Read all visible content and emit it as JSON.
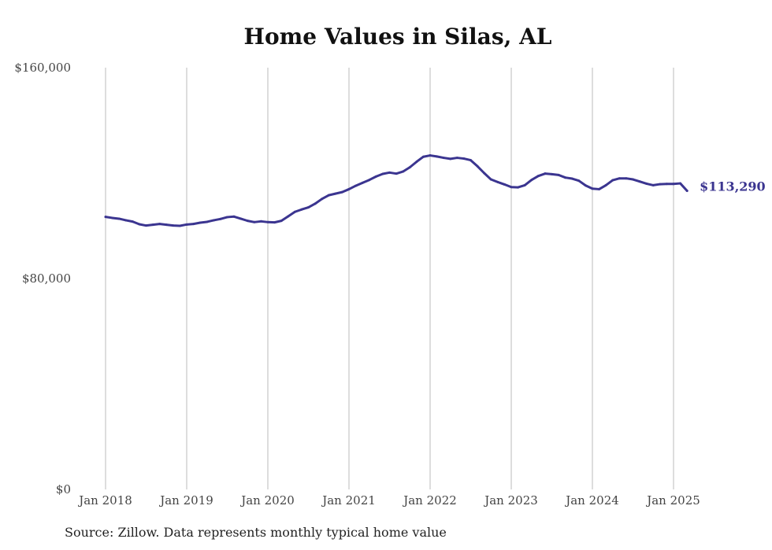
{
  "title": "Home Values in Silas, AL",
  "source": "Source: Zillow. Data represents monthly typical home value",
  "colors": {
    "line": "#3b3590",
    "grid": "#bbbbbb",
    "text": "#444444"
  },
  "chart_data": {
    "type": "line",
    "title": "Home Values in Silas, AL",
    "xlabel": "",
    "ylabel": "",
    "ylim": [
      0,
      160000
    ],
    "y_ticks": [
      0,
      80000,
      160000
    ],
    "y_tick_labels": [
      "$0",
      "$80,000",
      "$160,000"
    ],
    "x_ticks": [
      "2018-01",
      "2019-01",
      "2020-01",
      "2021-01",
      "2022-01",
      "2023-01",
      "2024-01",
      "2025-01"
    ],
    "x_tick_labels": [
      "Jan 2018",
      "Jan 2019",
      "Jan 2020",
      "Jan 2021",
      "Jan 2022",
      "Jan 2023",
      "Jan 2024",
      "Jan 2025"
    ],
    "grid": "vertical",
    "end_label": "$113,290",
    "series": [
      {
        "x": [
          "2018-01",
          "2018-02",
          "2018-03",
          "2018-04",
          "2018-05",
          "2018-06",
          "2018-07",
          "2018-08",
          "2018-09",
          "2018-10",
          "2018-11",
          "2018-12",
          "2019-01",
          "2019-02",
          "2019-03",
          "2019-04",
          "2019-05",
          "2019-06",
          "2019-07",
          "2019-08",
          "2019-09",
          "2019-10",
          "2019-11",
          "2019-12",
          "2020-01",
          "2020-02",
          "2020-03",
          "2020-04",
          "2020-05",
          "2020-06",
          "2020-07",
          "2020-08",
          "2020-09",
          "2020-10",
          "2020-11",
          "2020-12",
          "2021-01",
          "2021-02",
          "2021-03",
          "2021-04",
          "2021-05",
          "2021-06",
          "2021-07",
          "2021-08",
          "2021-09",
          "2021-10",
          "2021-11",
          "2021-12",
          "2022-01",
          "2022-02",
          "2022-03",
          "2022-04",
          "2022-05",
          "2022-06",
          "2022-07",
          "2022-08",
          "2022-09",
          "2022-10",
          "2022-11",
          "2022-12",
          "2023-01",
          "2023-02",
          "2023-03",
          "2023-04",
          "2023-05",
          "2023-06",
          "2023-07",
          "2023-08",
          "2023-09",
          "2023-10",
          "2023-11",
          "2023-12",
          "2024-01",
          "2024-02",
          "2024-03",
          "2024-04",
          "2024-05",
          "2024-06",
          "2024-07",
          "2024-08",
          "2024-09",
          "2024-10",
          "2024-11",
          "2024-12",
          "2025-01",
          "2025-02",
          "2025-03"
        ],
        "values": [
          103400,
          103000,
          102700,
          102100,
          101600,
          100600,
          100100,
          100400,
          100700,
          100400,
          100100,
          100000,
          100500,
          100700,
          101200,
          101500,
          102100,
          102600,
          103300,
          103500,
          102700,
          101900,
          101400,
          101700,
          101400,
          101300,
          101900,
          103600,
          105300,
          106200,
          107000,
          108400,
          110200,
          111600,
          112200,
          112800,
          113900,
          115200,
          116300,
          117400,
          118700,
          119700,
          120200,
          119800,
          120600,
          122200,
          124300,
          126200,
          126700,
          126300,
          125800,
          125400,
          125800,
          125500,
          124900,
          122600,
          120000,
          117600,
          116600,
          115700,
          114700,
          114600,
          115400,
          117400,
          118900,
          119800,
          119600,
          119300,
          118300,
          117900,
          117100,
          115300,
          114100,
          113900,
          115400,
          117300,
          118000,
          118000,
          117600,
          116800,
          116000,
          115400,
          115800,
          115900,
          115900,
          116100,
          113290
        ]
      }
    ]
  }
}
